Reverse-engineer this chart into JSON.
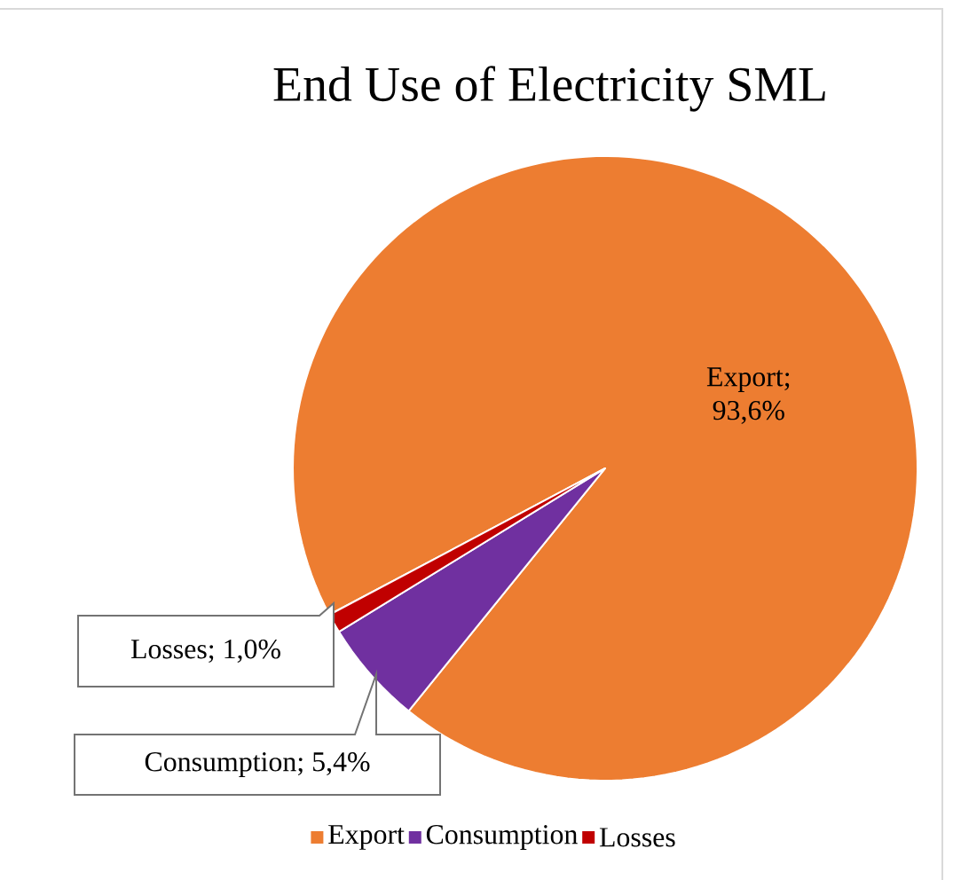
{
  "chart_data": {
    "type": "pie",
    "title": "End Use of Electricity SML",
    "categories": [
      "Export",
      "Consumption",
      "Losses"
    ],
    "values": [
      93.6,
      5.4,
      1.0
    ],
    "colors": [
      "#ed7d31",
      "#7030a0",
      "#c00000"
    ],
    "value_labels": [
      "Export; 93,6%",
      "Consumption; 5,4%",
      "Losses; 1,0%"
    ],
    "legend": "bottom"
  }
}
